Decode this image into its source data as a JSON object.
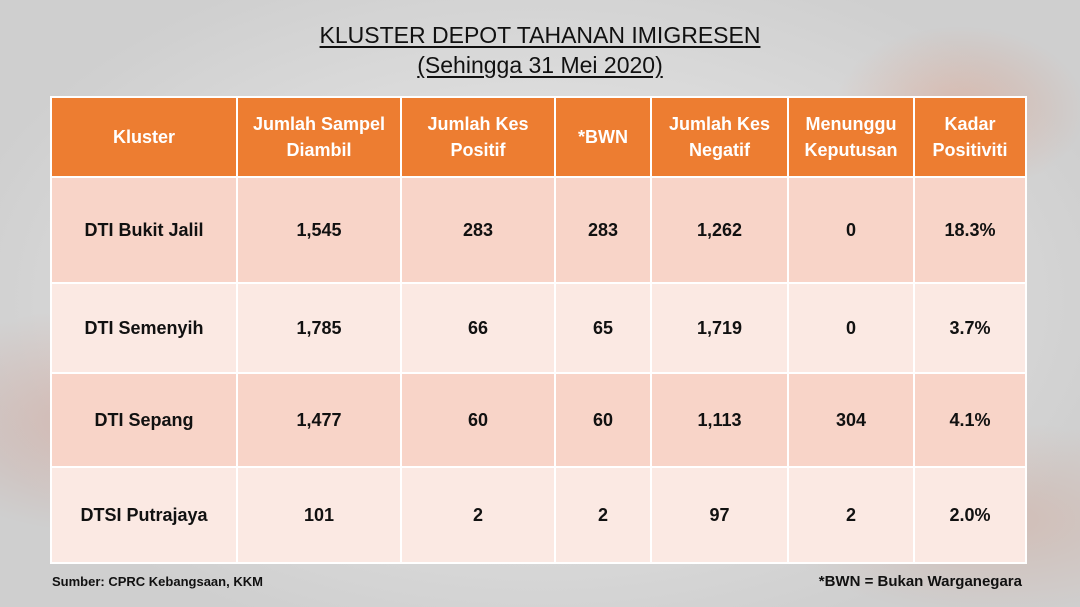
{
  "title": {
    "line1": "KLUSTER DEPOT TAHANAN IMIGRESEN",
    "line2": "(Sehingga 31 Mei 2020)"
  },
  "table": {
    "headers": [
      "Kluster",
      "Jumlah Sampel Diambil",
      "Jumlah Kes Positif",
      "*BWN",
      "Jumlah Kes Negatif",
      "Menunggu Keputusan",
      "Kadar Positiviti"
    ],
    "rows": [
      [
        "DTI Bukit Jalil",
        "1,545",
        "283",
        "283",
        "1,262",
        "0",
        "18.3%"
      ],
      [
        "DTI Semenyih",
        "1,785",
        "66",
        "65",
        "1,719",
        "0",
        "3.7%"
      ],
      [
        "DTI Sepang",
        "1,477",
        "60",
        "60",
        "1,113",
        "304",
        "4.1%"
      ],
      [
        "DTSI Putrajaya",
        "101",
        "2",
        "2",
        "97",
        "2",
        "2.0%"
      ]
    ]
  },
  "footer": {
    "source": "Sumber: CPRC Kebangsaan, KKM",
    "note": "*BWN = Bukan Warganegara"
  },
  "colors": {
    "header_bg": "#ed7d31",
    "row_dark": "#f8d4c8",
    "row_light": "#fbe9e3"
  }
}
